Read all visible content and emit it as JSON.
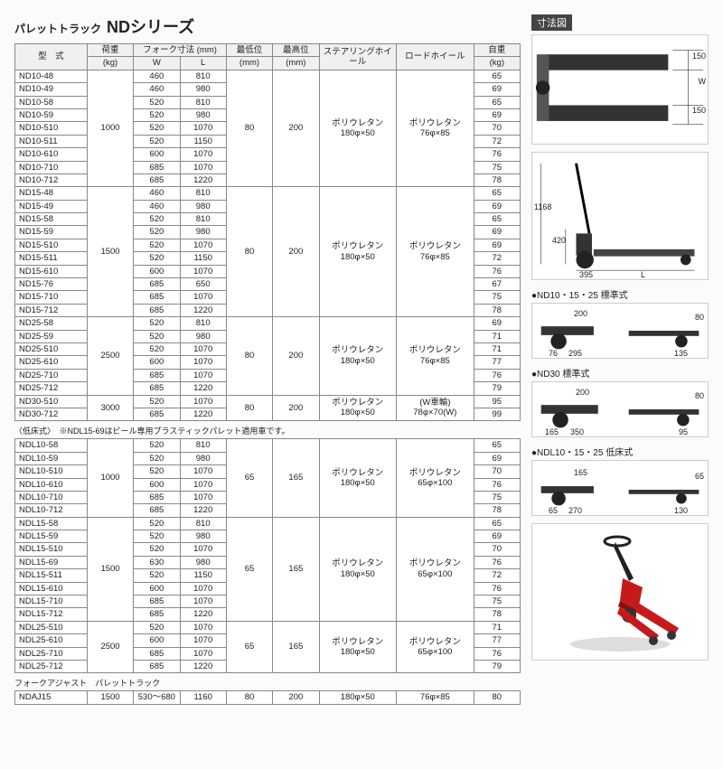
{
  "title": {
    "jp": "パレットトラック",
    "series": "NDシリーズ"
  },
  "dim_heading": "寸法図",
  "headers": {
    "model": "型　式",
    "load": "荷重",
    "load_unit": "(kg)",
    "fork": "フォーク寸法 (mm)",
    "fork_w": "W",
    "fork_l": "L",
    "min_h": "最低位",
    "min_h_unit": "(mm)",
    "max_h": "最高位",
    "max_h_unit": "(mm)",
    "steer": "ステアリングホイール",
    "load_wheel": "ロードホイール",
    "weight": "自重",
    "weight_unit": "(kg)"
  },
  "groups_std": [
    {
      "load": "1000",
      "min_h": "80",
      "max_h": "200",
      "steer": "ポリウレタン 180φ×50",
      "load_wheel": "ポリウレタン 76φ×85",
      "rows": [
        [
          "ND10-48",
          "460",
          "810",
          "65"
        ],
        [
          "ND10-49",
          "460",
          "980",
          "69"
        ],
        [
          "ND10-58",
          "520",
          "810",
          "65"
        ],
        [
          "ND10-59",
          "520",
          "980",
          "69"
        ],
        [
          "ND10-510",
          "520",
          "1070",
          "70"
        ],
        [
          "ND10-511",
          "520",
          "1150",
          "72"
        ],
        [
          "ND10-610",
          "600",
          "1070",
          "76"
        ],
        [
          "ND10-710",
          "685",
          "1070",
          "75"
        ],
        [
          "ND10-712",
          "685",
          "1220",
          "78"
        ]
      ]
    },
    {
      "load": "1500",
      "min_h": "80",
      "max_h": "200",
      "steer": "ポリウレタン 180φ×50",
      "load_wheel": "ポリウレタン 76φ×85",
      "rows": [
        [
          "ND15-48",
          "460",
          "810",
          "65"
        ],
        [
          "ND15-49",
          "460",
          "980",
          "69"
        ],
        [
          "ND15-58",
          "520",
          "810",
          "65"
        ],
        [
          "ND15-59",
          "520",
          "980",
          "69"
        ],
        [
          "ND15-510",
          "520",
          "1070",
          "69"
        ],
        [
          "ND15-511",
          "520",
          "1150",
          "72"
        ],
        [
          "ND15-610",
          "600",
          "1070",
          "76"
        ],
        [
          "ND15-76",
          "685",
          "650",
          "67"
        ],
        [
          "ND15-710",
          "685",
          "1070",
          "75"
        ],
        [
          "ND15-712",
          "685",
          "1220",
          "78"
        ]
      ]
    },
    {
      "load": "2500",
      "min_h": "80",
      "max_h": "200",
      "steer": "ポリウレタン 180φ×50",
      "load_wheel": "ポリウレタン 76φ×85",
      "rows": [
        [
          "ND25-58",
          "520",
          "810",
          "69"
        ],
        [
          "ND25-59",
          "520",
          "980",
          "71"
        ],
        [
          "ND25-510",
          "520",
          "1070",
          "71"
        ],
        [
          "ND25-610",
          "600",
          "1070",
          "77"
        ],
        [
          "ND25-710",
          "685",
          "1070",
          "76"
        ],
        [
          "ND25-712",
          "685",
          "1220",
          "79"
        ]
      ]
    },
    {
      "load": "3000",
      "min_h": "80",
      "max_h": "200",
      "steer": "ポリウレタン 180φ×50",
      "load_wheel": "(W車輪) 78φ×70(W)",
      "rows": [
        [
          "ND30-510",
          "520",
          "1070",
          "95"
        ],
        [
          "ND30-712",
          "685",
          "1220",
          "99"
        ]
      ]
    }
  ],
  "note_low": "〈低床式〉　※NDL15-69はビール専用プラスティックパレット適用車です。",
  "groups_low": [
    {
      "load": "1000",
      "min_h": "65",
      "max_h": "165",
      "steer": "ポリウレタン 180φ×50",
      "load_wheel": "ポリウレタン 65φ×100",
      "rows": [
        [
          "NDL10-58",
          "520",
          "810",
          "65"
        ],
        [
          "NDL10-59",
          "520",
          "980",
          "69"
        ],
        [
          "NDL10-510",
          "520",
          "1070",
          "70"
        ],
        [
          "NDL10-610",
          "600",
          "1070",
          "76"
        ],
        [
          "NDL10-710",
          "685",
          "1070",
          "75"
        ],
        [
          "NDL10-712",
          "685",
          "1220",
          "78"
        ]
      ]
    },
    {
      "load": "1500",
      "min_h": "65",
      "max_h": "165",
      "steer": "ポリウレタン 180φ×50",
      "load_wheel": "ポリウレタン 65φ×100",
      "rows": [
        [
          "NDL15-58",
          "520",
          "810",
          "65"
        ],
        [
          "NDL15-59",
          "520",
          "980",
          "69"
        ],
        [
          "NDL15-510",
          "520",
          "1070",
          "70"
        ],
        [
          "NDL15-69",
          "630",
          "980",
          "76"
        ],
        [
          "NDL15-511",
          "520",
          "1150",
          "72"
        ],
        [
          "NDL15-610",
          "600",
          "1070",
          "76"
        ],
        [
          "NDL15-710",
          "685",
          "1070",
          "75"
        ],
        [
          "NDL15-712",
          "685",
          "1220",
          "78"
        ]
      ]
    },
    {
      "load": "2500",
      "min_h": "65",
      "max_h": "165",
      "steer": "ポリウレタン 180φ×50",
      "load_wheel": "ポリウレタン 65φ×100",
      "rows": [
        [
          "NDL25-510",
          "520",
          "1070",
          "71"
        ],
        [
          "NDL25-610",
          "600",
          "1070",
          "77"
        ],
        [
          "NDL25-710",
          "685",
          "1070",
          "76"
        ],
        [
          "NDL25-712",
          "685",
          "1220",
          "79"
        ]
      ]
    }
  ],
  "adjust_title": "フォークアジャスト　パレットトラック",
  "adjust_row": [
    "NDAJ15",
    "1500",
    "530～680",
    "1160",
    "80",
    "200",
    "180φ×50",
    "76φ×85",
    "80"
  ],
  "diagrams": {
    "top": {
      "dim_150a": "150",
      "dim_150b": "150",
      "dim_W": "W"
    },
    "side": {
      "dim_1168": "1168",
      "dim_420": "420",
      "dim_395": "395",
      "dim_L": "L"
    },
    "std": {
      "label": "●ND10・15・25 標準式",
      "d200": "200",
      "d80": "80",
      "d76": "76",
      "d295": "295",
      "d135": "135"
    },
    "nd30": {
      "label": "●ND30 標準式",
      "d200": "200",
      "d80": "80",
      "d165": "165",
      "d350": "350",
      "d95": "95"
    },
    "ndl": {
      "label": "●NDL10・15・25 低床式",
      "d165": "165",
      "d65": "65",
      "d65b": "65",
      "d270": "270",
      "d130": "130"
    }
  }
}
